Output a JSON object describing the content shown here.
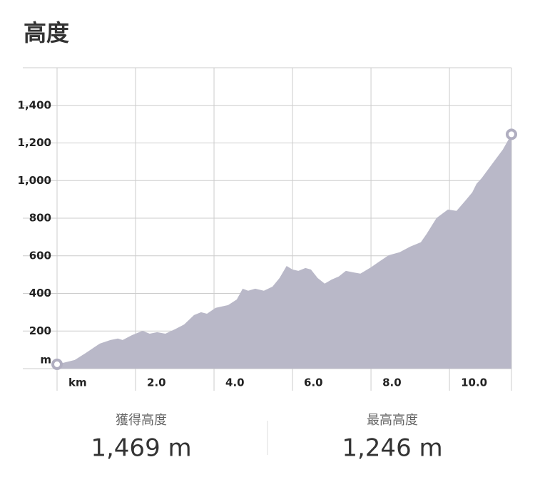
{
  "chart_data": {
    "type": "area",
    "title": "高度",
    "x": [
      0,
      0.22,
      0.45,
      0.73,
      1.0,
      1.09,
      1.36,
      1.55,
      1.67,
      1.91,
      2.18,
      2.36,
      2.55,
      2.76,
      3.0,
      3.24,
      3.49,
      3.67,
      3.82,
      4.04,
      4.36,
      4.58,
      4.73,
      4.87,
      5.05,
      5.27,
      5.49,
      5.67,
      5.85,
      6.0,
      6.15,
      6.33,
      6.47,
      6.64,
      6.82,
      7.0,
      7.18,
      7.36,
      7.55,
      7.73,
      8.0,
      8.18,
      8.45,
      8.73,
      9.0,
      9.27,
      9.42,
      9.67,
      9.96,
      10.18,
      10.4,
      10.58,
      10.69,
      10.82,
      11.09,
      11.36,
      11.58
    ],
    "series": [
      {
        "color": "#b9b8c8",
        "values": [
          23,
          34,
          46,
          83,
          121,
          133,
          152,
          160,
          152,
          178,
          201,
          186,
          194,
          186,
          209,
          235,
          285,
          300,
          292,
          323,
          338,
          368,
          425,
          414,
          425,
          414,
          436,
          482,
          546,
          527,
          520,
          535,
          527,
          482,
          452,
          474,
          490,
          520,
          512,
          505,
          539,
          565,
          603,
          619,
          649,
          672,
          717,
          801,
          846,
          839,
          892,
          937,
          983,
          1013,
          1089,
          1165,
          1246
        ]
      }
    ],
    "marker_color": "#b0aec0",
    "xlim": [
      0,
      11.58
    ],
    "ylim": [
      0,
      1600
    ],
    "xticks": [
      {
        "value": 0,
        "label": "km"
      },
      {
        "value": 2,
        "label": "2.0"
      },
      {
        "value": 4,
        "label": "4.0"
      },
      {
        "value": 6,
        "label": "6.0"
      },
      {
        "value": 8,
        "label": "8.0"
      },
      {
        "value": 10,
        "label": "10.0"
      }
    ],
    "yticks": [
      {
        "value": 0,
        "label": "m"
      },
      200,
      400,
      600,
      {
        "value": 800,
        "label": "800"
      },
      {
        "value": 1000,
        "label": "1,000"
      },
      {
        "value": 1200,
        "label": "1,200"
      },
      {
        "value": 1400,
        "label": "1,400"
      }
    ],
    "grid": true
  },
  "stats": [
    {
      "label": "獲得高度",
      "value": "1,469 m"
    },
    {
      "label": "最高高度",
      "value": "1,246 m"
    }
  ]
}
